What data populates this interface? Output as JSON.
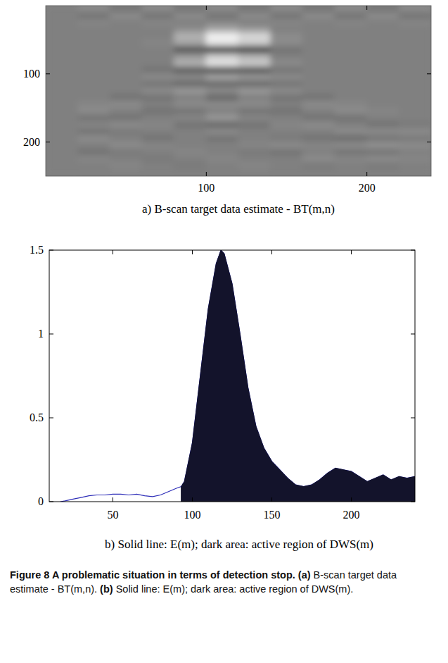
{
  "chart_data": [
    {
      "type": "heatmap",
      "title": "a) B-scan target data estimate - BT(m,n)",
      "x_edges": [
        0,
        20,
        40,
        60,
        80,
        100,
        120,
        140,
        160,
        180,
        200,
        220,
        240
      ],
      "y_edges": [
        0,
        10,
        20,
        30,
        40,
        50,
        60,
        70,
        80,
        90,
        100,
        110,
        120,
        130,
        140,
        150,
        160,
        170,
        180,
        190,
        200,
        210,
        220,
        230,
        240,
        250
      ],
      "value_range": [
        -1,
        1
      ],
      "cells": [
        [
          0,
          0.1,
          -0.1,
          0.1,
          -0.1,
          0.1,
          -0.1,
          0.1,
          -0.1,
          0.1,
          -0.1,
          0.1
        ],
        [
          0,
          -0.1,
          0.1,
          -0.1,
          0.1,
          -0.1,
          0.1,
          -0.1,
          0.1,
          -0.1,
          0.1,
          -0.1
        ],
        [
          0,
          0.05,
          0,
          0.05,
          0,
          0.05,
          0,
          0.05,
          0,
          0.05,
          0,
          0.05
        ],
        [
          0,
          0,
          0,
          0,
          0.1,
          0.3,
          0.2,
          0,
          0,
          0,
          0,
          0
        ],
        [
          0,
          0,
          0,
          0,
          0.4,
          0.9,
          0.7,
          0.1,
          0,
          0,
          0,
          0
        ],
        [
          0,
          0,
          0,
          0.05,
          0.3,
          0.8,
          0.6,
          0.1,
          0,
          0,
          0,
          0
        ],
        [
          0,
          0,
          0,
          0,
          -0.4,
          -0.9,
          -0.7,
          -0.1,
          0,
          0,
          0,
          0
        ],
        [
          0,
          0,
          0,
          0,
          0.2,
          0.6,
          0.4,
          0,
          0,
          0,
          0,
          0
        ],
        [
          0,
          0,
          0,
          0,
          0.4,
          0.8,
          0.6,
          0.1,
          0,
          0,
          0,
          0
        ],
        [
          0,
          0,
          0,
          -0.1,
          -0.3,
          -0.5,
          -0.4,
          -0.1,
          0,
          0,
          0,
          0
        ],
        [
          0,
          0,
          0,
          0.1,
          0.1,
          0.3,
          0.2,
          0.1,
          0,
          0,
          0,
          0
        ],
        [
          0,
          0,
          0,
          -0.1,
          -0.2,
          -0.2,
          -0.2,
          -0.1,
          0,
          0,
          0,
          0
        ],
        [
          0,
          0,
          0,
          0.1,
          0.2,
          0.1,
          0.2,
          0.1,
          0,
          0,
          0,
          0
        ],
        [
          0,
          0,
          -0.1,
          -0.1,
          0,
          -0.2,
          0,
          -0.1,
          -0.1,
          0,
          0,
          0
        ],
        [
          0,
          0.05,
          0.1,
          0,
          0.1,
          0.1,
          0.1,
          0,
          0.1,
          0.05,
          0,
          0
        ],
        [
          0,
          0.1,
          0,
          -0.1,
          -0.1,
          0,
          -0.1,
          -0.1,
          0,
          0.1,
          0.05,
          0
        ],
        [
          0,
          -0.1,
          -0.1,
          0,
          0.05,
          0.2,
          0.05,
          0,
          -0.1,
          -0.1,
          0,
          0
        ],
        [
          0,
          0.05,
          0.1,
          0.05,
          -0.1,
          -0.2,
          -0.1,
          0.05,
          0.1,
          0,
          -0.1,
          -0.05
        ],
        [
          0,
          -0.1,
          -0.05,
          0,
          0,
          0.1,
          0,
          0,
          0,
          0.1,
          0.1,
          0.1
        ],
        [
          0,
          0.1,
          0,
          -0.1,
          0,
          -0.1,
          0,
          -0.05,
          -0.1,
          -0.15,
          -0.1,
          -0.05
        ],
        [
          0,
          0,
          0.1,
          0.05,
          0,
          0,
          0.05,
          0.1,
          0.05,
          0.1,
          0.15,
          0.1
        ],
        [
          0,
          -0.1,
          -0.05,
          0,
          0.05,
          0,
          -0.05,
          -0.1,
          0,
          -0.1,
          -0.1,
          0
        ],
        [
          0,
          0.05,
          0,
          -0.05,
          0,
          0.05,
          0,
          0,
          0.1,
          0.05,
          0.1,
          0.05
        ],
        [
          0,
          0,
          0.05,
          0,
          -0.05,
          0,
          0.05,
          0,
          -0.05,
          0,
          -0.05,
          0
        ],
        [
          0,
          0,
          0,
          0,
          0,
          0,
          0,
          0,
          0,
          0,
          0,
          0
        ]
      ],
      "xlim": [
        0,
        240
      ],
      "ylim": [
        0,
        250
      ],
      "xticks": [
        100,
        200
      ],
      "yticks": [
        100,
        200
      ]
    },
    {
      "type": "line",
      "title": "b) Solid line: E(m); dark area: active region of DWS(m)",
      "x": [
        17,
        20,
        25,
        30,
        35,
        40,
        45,
        50,
        55,
        60,
        65,
        70,
        75,
        80,
        85,
        90,
        93,
        95,
        100,
        105,
        110,
        115,
        118,
        120,
        125,
        130,
        135,
        140,
        145,
        150,
        155,
        160,
        165,
        170,
        175,
        180,
        185,
        190,
        195,
        200,
        205,
        210,
        215,
        220,
        225,
        230,
        235,
        240
      ],
      "series": [
        {
          "type": "line",
          "color": "#2e2eb8",
          "values": [
            0,
            0.005,
            0.015,
            0.025,
            0.035,
            0.04,
            0.04,
            0.045,
            0.045,
            0.04,
            0.045,
            0.035,
            0.03,
            0.04,
            0.06,
            0.08,
            0.09,
            0.12,
            0.35,
            0.75,
            1.15,
            1.42,
            1.5,
            1.48,
            1.3,
            1.0,
            0.68,
            0.45,
            0.32,
            0.24,
            0.19,
            0.14,
            0.1,
            0.09,
            0.1,
            0.13,
            0.17,
            0.2,
            0.19,
            0.18,
            0.15,
            0.12,
            0.14,
            0.16,
            0.13,
            0.15,
            0.14,
            0.15
          ]
        },
        {
          "type": "area",
          "color": "#13132b",
          "values": [
            null,
            null,
            null,
            null,
            null,
            null,
            null,
            null,
            null,
            null,
            null,
            null,
            null,
            null,
            null,
            null,
            0.09,
            0.12,
            0.35,
            0.75,
            1.15,
            1.42,
            1.5,
            1.48,
            1.3,
            1.0,
            0.68,
            0.45,
            0.32,
            0.24,
            0.19,
            0.14,
            0.1,
            0.09,
            0.1,
            0.13,
            0.17,
            0.2,
            0.19,
            0.18,
            0.15,
            0.12,
            0.14,
            0.16,
            0.13,
            0.15,
            0.14,
            0.15
          ]
        }
      ],
      "xlim": [
        10,
        240
      ],
      "ylim": [
        0,
        1.5
      ],
      "xticks": [
        50,
        100,
        150,
        200
      ],
      "yticks": [
        0,
        0.5,
        1,
        1.5
      ]
    }
  ],
  "figure_caption": {
    "title": "Figure 8 A problematic situation in terms of detection stop.",
    "panels": [
      {
        "label": "(a)",
        "text": "B-scan target data estimate - BT(m,n)."
      },
      {
        "label": "(b)",
        "text": "Solid line: E(m); dark area: active region of DWS(m)."
      }
    ]
  }
}
